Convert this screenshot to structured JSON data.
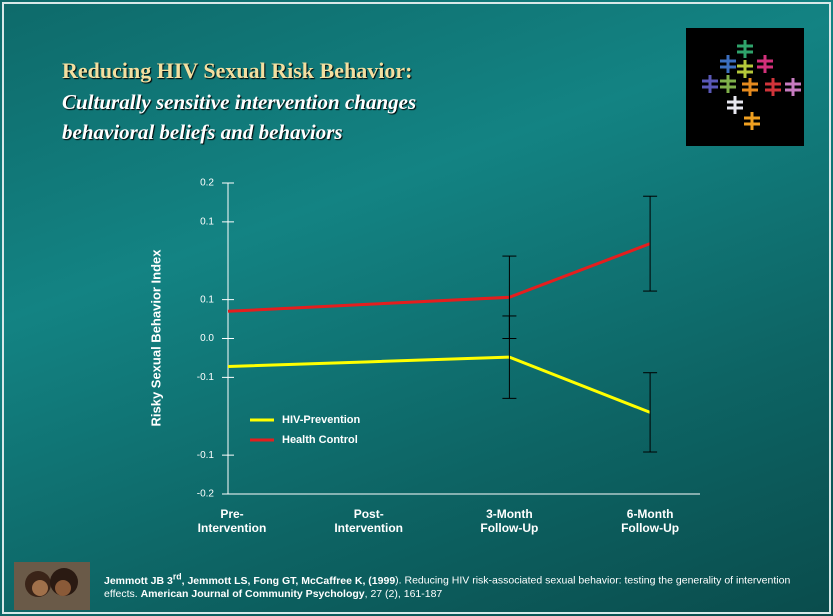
{
  "header": {
    "title": "Reducing HIV Sexual Risk Behavior:",
    "subtitle_line1": "Culturally sensitive intervention changes",
    "subtitle_line2": "behavioral beliefs and behaviors"
  },
  "chart_data": {
    "type": "line",
    "y_label": "Risky Sexual Behavior Index",
    "categories": [
      "Pre-\nIntervention",
      "Post-\nIntervention",
      "3-Month\nFollow-Up",
      "6-Month\nFollow-Up"
    ],
    "series": [
      {
        "name": "HIV-Prevention",
        "color": "#ffff00",
        "values": [
          -0.036,
          -0.03,
          -0.024,
          -0.095
        ],
        "errors": [
          null,
          null,
          0.053,
          0.051
        ]
      },
      {
        "name": "Health Control",
        "color": "#e41e1e",
        "values": [
          0.035,
          0.044,
          0.053,
          0.122
        ],
        "errors": [
          null,
          null,
          0.053,
          0.061
        ]
      }
    ],
    "ylim": [
      -0.2,
      0.2
    ],
    "yticks": [
      {
        "value": 0.2,
        "label": "0.2"
      },
      {
        "value": 0.15,
        "label": "0.1"
      },
      {
        "value": 0.05,
        "label": "0.1"
      },
      {
        "value": 0,
        "label": "0.0"
      },
      {
        "value": -0.05,
        "label": "-0.1"
      },
      {
        "value": -0.15,
        "label": "-0.1"
      },
      {
        "value": -0.2,
        "label": "-0.2"
      }
    ],
    "error_color": "#000000",
    "legend": "lower-left"
  },
  "citation": {
    "authors": "Jemmott JB 3",
    "sup": "rd",
    "authors_rest": ", Jemmott LS, Fong GT, McCaffree K, (1999",
    "close": ").",
    "title": " Reducing HIV risk-associated sexual behavior: testing the generality of intervention effects.  ",
    "journal": "American Journal of Community Psychology",
    "details": ", 27 (2), 161-187"
  }
}
